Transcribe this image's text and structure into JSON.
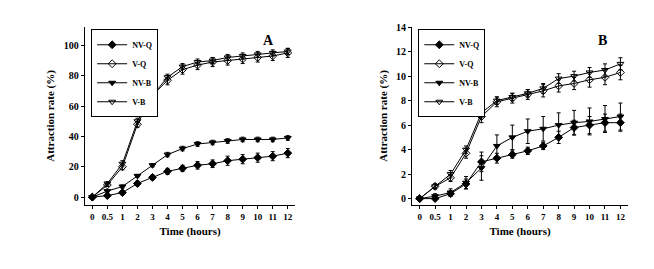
{
  "chart_data": [
    {
      "type": "line",
      "title": "A",
      "xlabel": "Time (hours)",
      "ylabel": "Attraction rate (%)",
      "categories": [
        "0",
        "0.5",
        "1",
        "2",
        "3",
        "4",
        "5",
        "6",
        "7",
        "8",
        "9",
        "10",
        "11",
        "12"
      ],
      "ylim": [
        -5,
        112
      ],
      "yticks": [
        0,
        20,
        40,
        60,
        80,
        100
      ],
      "grid": false,
      "legend": "upper left",
      "series": [
        {
          "name": "NV-Q",
          "color": "#000000",
          "marker": "diamond",
          "line_style": "solid",
          "values": [
            0,
            1,
            3,
            9,
            13,
            17,
            19,
            21,
            22,
            24,
            25,
            26,
            27,
            29
          ],
          "errors": [
            0,
            0.5,
            1,
            1.5,
            1.5,
            2,
            2,
            2.5,
            2.5,
            3,
            3,
            3,
            3,
            3
          ]
        },
        {
          "name": "V-Q",
          "color": "#000000",
          "marker": "diamond-open",
          "line_style": "solid",
          "values": [
            0,
            8,
            20,
            48,
            67,
            77,
            84,
            87,
            89,
            90,
            91,
            92,
            93,
            95
          ],
          "errors": [
            0,
            1,
            2,
            2,
            2,
            3,
            3,
            3,
            3,
            3,
            3,
            3,
            3,
            3
          ]
        },
        {
          "name": "NV-B",
          "color": "#000000",
          "marker": "triangle-down",
          "line_style": "solid",
          "values": [
            0,
            4,
            7,
            14,
            21,
            28,
            32,
            35,
            36,
            37,
            38,
            38,
            38,
            39
          ],
          "errors": [
            0,
            0.5,
            1,
            1,
            1,
            1.5,
            1.5,
            1.5,
            1.5,
            1.5,
            1.5,
            1.5,
            1.5,
            1.5
          ]
        },
        {
          "name": "V-B",
          "color": "#000000",
          "marker": "triangle-down-open",
          "line_style": "solid",
          "values": [
            0,
            9,
            22,
            50,
            67,
            79,
            86,
            89,
            90,
            92,
            93,
            94,
            95,
            96
          ],
          "errors": [
            0,
            1,
            2,
            2,
            2,
            2,
            2,
            2,
            2,
            2,
            2,
            2,
            2,
            2
          ]
        }
      ]
    },
    {
      "type": "line",
      "title": "B",
      "xlabel": "Time (hours)",
      "ylabel": "Attraction rate (%)",
      "categories": [
        "0",
        "0.5",
        "1",
        "2",
        "3",
        "4",
        "5",
        "6",
        "7",
        "8",
        "9",
        "10",
        "11",
        "12"
      ],
      "ylim": [
        -0.5,
        14
      ],
      "yticks": [
        0,
        2,
        4,
        6,
        8,
        10,
        12,
        14
      ],
      "grid": false,
      "legend": "upper left",
      "series": [
        {
          "name": "NV-Q",
          "color": "#000000",
          "marker": "diamond",
          "line_style": "solid",
          "values": [
            0,
            0,
            0.4,
            1.2,
            3,
            3.3,
            3.6,
            3.9,
            4.3,
            5,
            5.8,
            6,
            6.2,
            6.2
          ],
          "errors": [
            0,
            0.1,
            0.2,
            0.4,
            0.8,
            0.4,
            0.3,
            0.3,
            0.3,
            0.5,
            0.6,
            0.7,
            0.7,
            0.7
          ]
        },
        {
          "name": "V-Q",
          "color": "#000000",
          "marker": "diamond-open",
          "line_style": "solid",
          "values": [
            0,
            1,
            1.7,
            3.7,
            6.7,
            7.9,
            8.2,
            8.5,
            8.8,
            9.2,
            9.4,
            9.7,
            9.9,
            10.3
          ],
          "errors": [
            0,
            0.2,
            0.3,
            0.4,
            0.5,
            0.4,
            0.4,
            0.4,
            0.5,
            0.5,
            0.5,
            0.6,
            0.6,
            0.6
          ]
        },
        {
          "name": "NV-B",
          "color": "#000000",
          "marker": "triangle-down",
          "line_style": "solid",
          "values": [
            0,
            0.2,
            0.5,
            1.3,
            2.5,
            4.3,
            5,
            5.5,
            5.7,
            6,
            6.2,
            6.3,
            6.5,
            6.7
          ],
          "errors": [
            0,
            0.2,
            0.3,
            0.5,
            1,
            0.9,
            1,
            1,
            1,
            1,
            1,
            1.1,
            1.1,
            1.1
          ]
        },
        {
          "name": "V-B",
          "color": "#000000",
          "marker": "triangle-down-open",
          "line_style": "solid",
          "values": [
            0,
            1,
            2,
            4,
            7,
            8,
            8.3,
            8.6,
            9,
            9.8,
            10,
            10.3,
            10.5,
            11
          ],
          "errors": [
            0,
            0.2,
            0.3,
            0.3,
            0.4,
            0.3,
            0.3,
            0.3,
            0.4,
            0.4,
            0.4,
            0.4,
            0.5,
            0.5
          ]
        }
      ]
    }
  ]
}
